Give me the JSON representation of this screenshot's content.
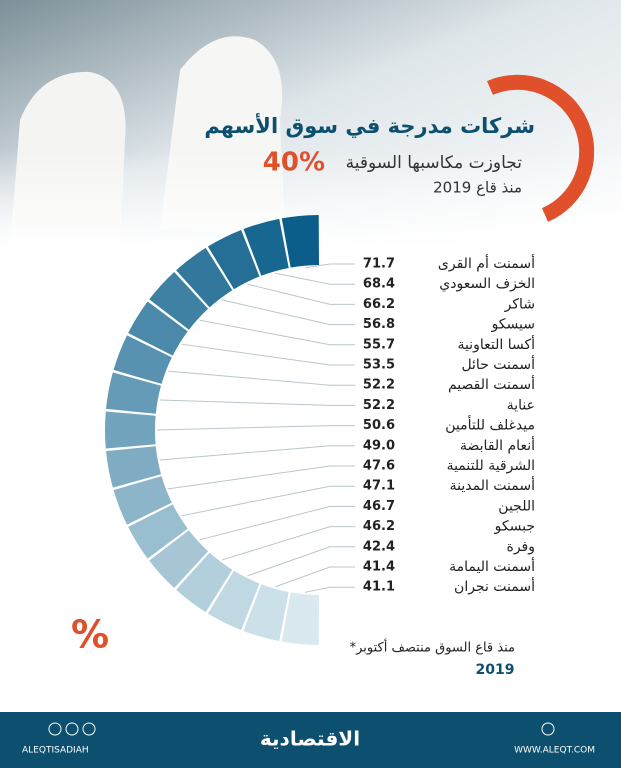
{
  "chart_data": {
    "type": "segment-ring",
    "title": "شركات مدرجة في سوق الأسهم",
    "subtitle": "تجاوزت مكاسبها السوقية",
    "highlight": "40%",
    "since": "منذ قاع 2019",
    "categories": [
      "أسمنت أم القرى",
      "الخزف السعودي",
      "شاكر",
      "سيسكو",
      "أكسا التعاونية",
      "أسمنت حائل",
      "أسمنت القصيم",
      "عناية",
      "ميدغلف للتأمين",
      "أنعام القابضة",
      "الشرقية للتنمية",
      "أسمنت المدينة",
      "اللجين",
      "جبسكو",
      "وفرة",
      "أسمنت اليمامة",
      "أسمنت نجران"
    ],
    "values": [
      71.7,
      68.4,
      66.2,
      56.8,
      55.7,
      53.5,
      52.2,
      52.2,
      50.6,
      49.0,
      47.6,
      47.1,
      46.7,
      46.2,
      42.4,
      41.4,
      41.1
    ],
    "value_labels": [
      "71.7",
      "68.4",
      "66.2",
      "56.8",
      "55.7",
      "53.5",
      "52.2",
      "52.2",
      "50.6",
      "49.0",
      "47.6",
      "47.1",
      "46.7",
      "46.2",
      "42.4",
      "41.4",
      "41.1"
    ],
    "color_dark": "#0b5e8a",
    "color_light": "#d9e9ef",
    "accent": "#e0502a",
    "footnote": "*منذ قاع السوق منتصف أكتوبر",
    "footnote_year": "2019"
  },
  "footer": {
    "brand": "الاقتصادية",
    "social": "ALEQTISADIAH",
    "website": "WWW.ALEQT.COM"
  }
}
